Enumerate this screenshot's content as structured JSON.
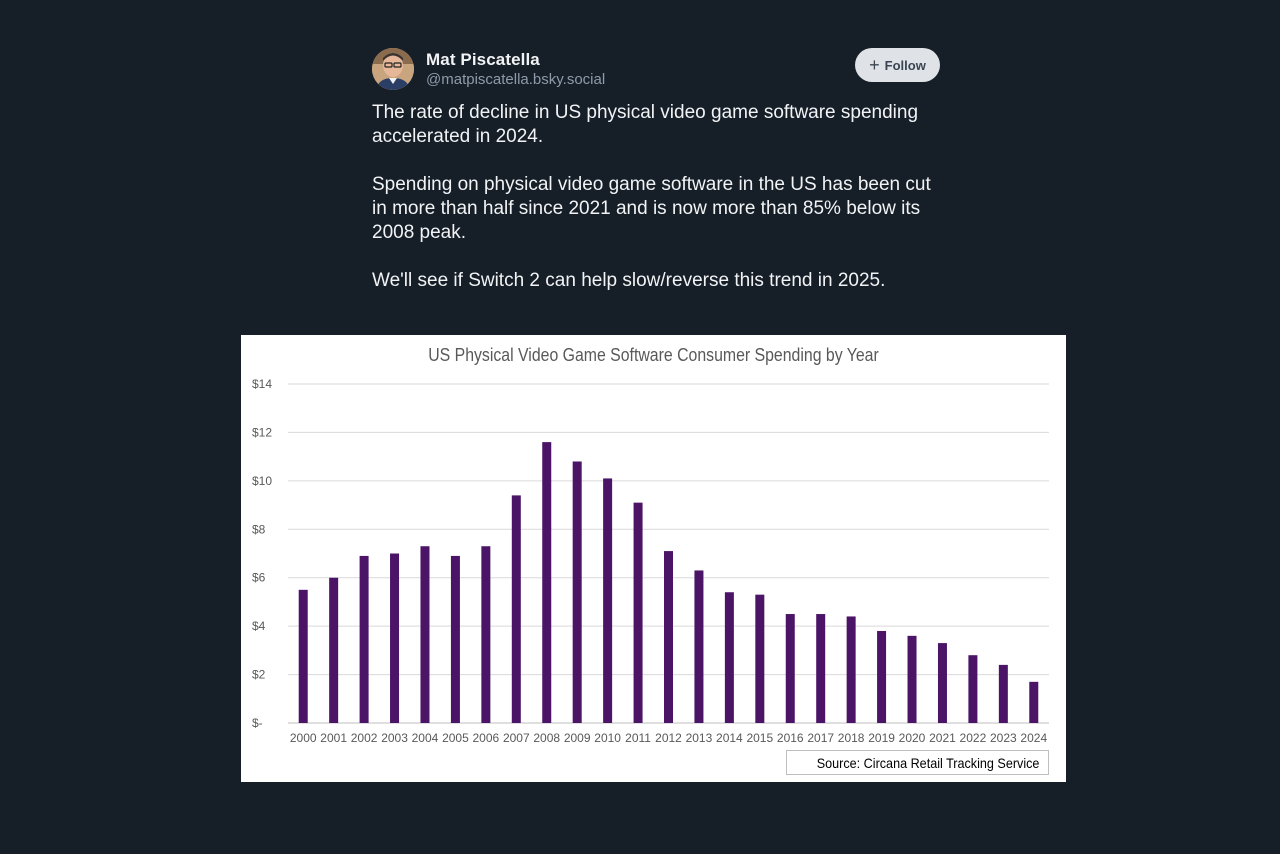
{
  "post": {
    "author_name": "Mat Piscatella",
    "author_handle": "@matpiscatella.bsky.social",
    "follow_label": "Follow",
    "paragraphs": [
      "The rate of decline in US physical video game software spending accelerated in 2024.",
      "Spending on physical video game software in the US has been cut in more than half since 2021 and is now more than 85% below its 2008 peak.",
      "We'll see if Switch 2 can help slow/reverse this trend in 2025."
    ]
  },
  "colors": {
    "page_background": "#161e27",
    "bar": "#4b1466",
    "follow_button": "#dfe3e8"
  },
  "icons": [
    "avatar-photo",
    "plus-icon"
  ],
  "chart_data": {
    "type": "bar",
    "title": "US Physical Video Game Software Consumer Spending by Year",
    "source": "Source: Circana Retail Tracking Service",
    "categories": [
      "2000",
      "2001",
      "2002",
      "2003",
      "2004",
      "2005",
      "2006",
      "2007",
      "2008",
      "2009",
      "2010",
      "2011",
      "2012",
      "2013",
      "2014",
      "2015",
      "2016",
      "2017",
      "2018",
      "2019",
      "2020",
      "2021",
      "2022",
      "2023",
      "2024"
    ],
    "values": [
      5.5,
      6.0,
      6.9,
      7.0,
      7.3,
      6.9,
      7.3,
      9.4,
      11.6,
      10.8,
      10.1,
      9.1,
      7.1,
      6.3,
      5.4,
      5.3,
      4.5,
      4.5,
      4.4,
      3.8,
      3.6,
      3.3,
      2.8,
      2.4,
      1.7
    ],
    "ylim": [
      0,
      14
    ],
    "yticks": [
      0,
      2,
      4,
      6,
      8,
      10,
      12,
      14
    ],
    "ytick_labels": [
      "$-",
      "$2",
      "$4",
      "$6",
      "$8",
      "$10",
      "$12",
      "$14"
    ],
    "grid": true,
    "legend": "none"
  }
}
